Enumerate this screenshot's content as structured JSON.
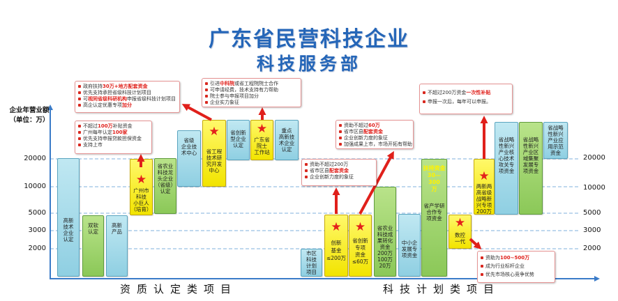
{
  "title": "广东省民营科技企业",
  "subtitle": "科技服务部",
  "y_axis": {
    "label": "企业年营业额",
    "unit": "（单位：万）"
  },
  "ticks_left": [
    "20000",
    "10000",
    "5000",
    "3000",
    "2000"
  ],
  "ticks_right": [
    "20000",
    "10000",
    "5000",
    "3000",
    "2000"
  ],
  "sections": {
    "left": "资质认定类项目",
    "right": "科技计划类项目"
  },
  "colors": {
    "title": "#2566b8",
    "blue_box": "#a6dbea",
    "green_box": "#9fd56a",
    "yellow_box": "#fff200",
    "star": "#e3201b",
    "arrow": "#e0201b",
    "axis": "#3a7bc8"
  },
  "boxes": [
    {
      "text": "高新\n技术\n企业\n认定",
      "color": "blue"
    },
    {
      "text": "双软\n认定",
      "color": "green"
    },
    {
      "text": "高新\n产品",
      "color": "blue"
    },
    {
      "text": "广州市\n科技\n小巨人\n（培育）",
      "color": "yellow",
      "icon": "star-icon"
    },
    {
      "text": "省农业\n科技龙\n头企业\n（省级）\n认定",
      "color": "green"
    },
    {
      "text": "省级\n企业技\n术中心",
      "color": "blue"
    },
    {
      "text": "省工程\n技术研\n究开发\n中心",
      "color": "yellow",
      "icon": "star-icon"
    },
    {
      "text": "省创新\n型企业\n认定",
      "color": "blue"
    },
    {
      "text": "广东省\n院士\n工作站",
      "color": "yellow",
      "icon": "star-icon"
    },
    {
      "text": "重点\n高新技\n术企业\n认定",
      "color": "blue"
    },
    {
      "text": "市区\n科技\n计划\n项目",
      "color": "blue"
    },
    {
      "text": "创新\n基金\n≤200万",
      "color": "yellow",
      "icon": "star-icon"
    },
    {
      "text": "省创新\n专项\n资金\n≤60万",
      "color": "yellow",
      "icon": "star-icon"
    },
    {
      "text": "省农业\n科技成\n果转化\n资金\n200万\n100万\n20万",
      "color": "green"
    },
    {
      "text": "中小企\n发展专\n项资金",
      "color": "blue"
    },
    {
      "top_text": "扶持资金\n30—300\n万",
      "text": "省产学研\n合作专\n项资金",
      "color": "green"
    },
    {
      "text": "数控\n一代",
      "color": "yellow",
      "icon": "star-icon"
    },
    {
      "text": "两新两\n高省级\n战略新\n兴专项\n200万",
      "color": "yellow",
      "icon": "star-icon"
    },
    {
      "text": "省战略\n性新兴\n产业核\n心技术\n攻关专\n项资金",
      "color": "blue"
    },
    {
      "text": "省战略\n性新兴\n产业区\n域集聚\n发展专\n项资金",
      "color": "green"
    },
    {
      "text": "省战略\n性新兴\n产业应\n用示范\n资金",
      "color": "blue"
    }
  ],
  "callouts": [
    {
      "lines": [
        [
          "不超过",
          "100万",
          "补贴资金"
        ],
        [
          "广州每年认定",
          "100家"
        ],
        [
          "优先支持申报贷款担保资金"
        ],
        [
          "支持上市"
        ]
      ]
    },
    {
      "lines": [
        [
          "政府扶持",
          "30万+地方配套资金"
        ],
        [
          "优先支持承担省级科技计划项目"
        ],
        [
          "可",
          "视同省级科研机构",
          "申报省级科技计划项目"
        ],
        [
          "高企认定优惠专项",
          "加分"
        ]
      ]
    },
    {
      "lines": [
        [
          "引进",
          "中科院",
          "或省工程院院士合作"
        ],
        [
          "可申请经费，技术支持有力帮助"
        ],
        [
          "院士参与申报项目加分"
        ],
        [
          "企业实力象征"
        ]
      ]
    },
    {
      "lines": [
        [
          "资助不超过200万"
        ],
        [
          "省市区县",
          "配套资金"
        ],
        [
          "企业创新力度的象征"
        ]
      ]
    },
    {
      "lines": [
        [
          "资助不超过",
          "60万"
        ],
        [
          "省市区县",
          "配套资金"
        ],
        [
          "企业创新力度的象征"
        ],
        [
          "加强成果上市，市场开拓有帮助"
        ]
      ]
    },
    {
      "lines": [
        [
          "不超过200万资金",
          "一次性补贴"
        ],
        [
          "申报一次后，每年可以申报。"
        ]
      ]
    },
    {
      "lines": [
        [
          "资助为",
          "100~500万"
        ],
        [
          "成为行业标杆企业"
        ],
        [
          "优先市场核心竞争优势"
        ]
      ]
    }
  ]
}
